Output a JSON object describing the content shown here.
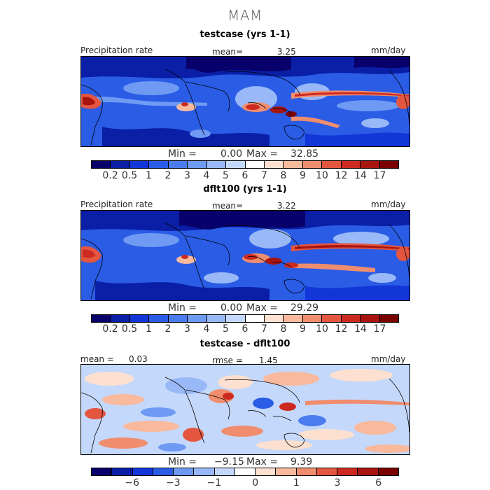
{
  "figure": {
    "season": "MAM"
  },
  "colors": {
    "precip": [
      "#08006b",
      "#0a1ea6",
      "#1336d8",
      "#2a5ce6",
      "#4a7cee",
      "#6e9af3",
      "#98b8f7",
      "#c4d8fb",
      "#ffffff",
      "#fde0cf",
      "#f8b99c",
      "#f08d6e",
      "#e4563f",
      "#cc2a20",
      "#a8140f",
      "#7a0000"
    ],
    "diff": [
      "#08006b",
      "#0a1ea6",
      "#1336d8",
      "#2a5ce6",
      "#6e9af3",
      "#98b8f7",
      "#c4d8fb",
      "#ffffff",
      "#fde0cf",
      "#f8b99c",
      "#f08d6e",
      "#e4563f",
      "#cc2a20",
      "#a8140f",
      "#7a0000"
    ]
  },
  "panels": [
    {
      "title": "testcase (yrs 1-1)",
      "left_label": "Precipitation rate",
      "stat_label": "mean=",
      "stat_value": "3.25",
      "units": "mm/day",
      "min_label": "Min =",
      "min_value": "0.00",
      "max_label": "Max =",
      "max_value": "32.85",
      "ticks": [
        "0.2",
        "0.5",
        "1",
        "2",
        "3",
        "4",
        "5",
        "6",
        "7",
        "8",
        "9",
        "10",
        "12",
        "14",
        "17"
      ]
    },
    {
      "title": "dflt100 (yrs 1-1)",
      "left_label": "Precipitation rate",
      "stat_label": "mean=",
      "stat_value": "3.22",
      "units": "mm/day",
      "min_label": "Min =",
      "min_value": "0.00",
      "max_label": "Max =",
      "max_value": "29.29",
      "ticks": [
        "0.2",
        "0.5",
        "1",
        "2",
        "3",
        "4",
        "5",
        "6",
        "7",
        "8",
        "9",
        "10",
        "12",
        "14",
        "17"
      ]
    },
    {
      "title": "testcase - dflt100",
      "left_label": "mean =",
      "left_value": "0.03",
      "stat_label": "rmse =",
      "stat_value": "1.45",
      "units": "mm/day",
      "min_label": "Min =",
      "min_value": "−9.15",
      "max_label": "Max =",
      "max_value": "9.39",
      "ticks": [
        "−6",
        "−3",
        "−1",
        "0",
        "1",
        "3",
        "6"
      ]
    }
  ]
}
